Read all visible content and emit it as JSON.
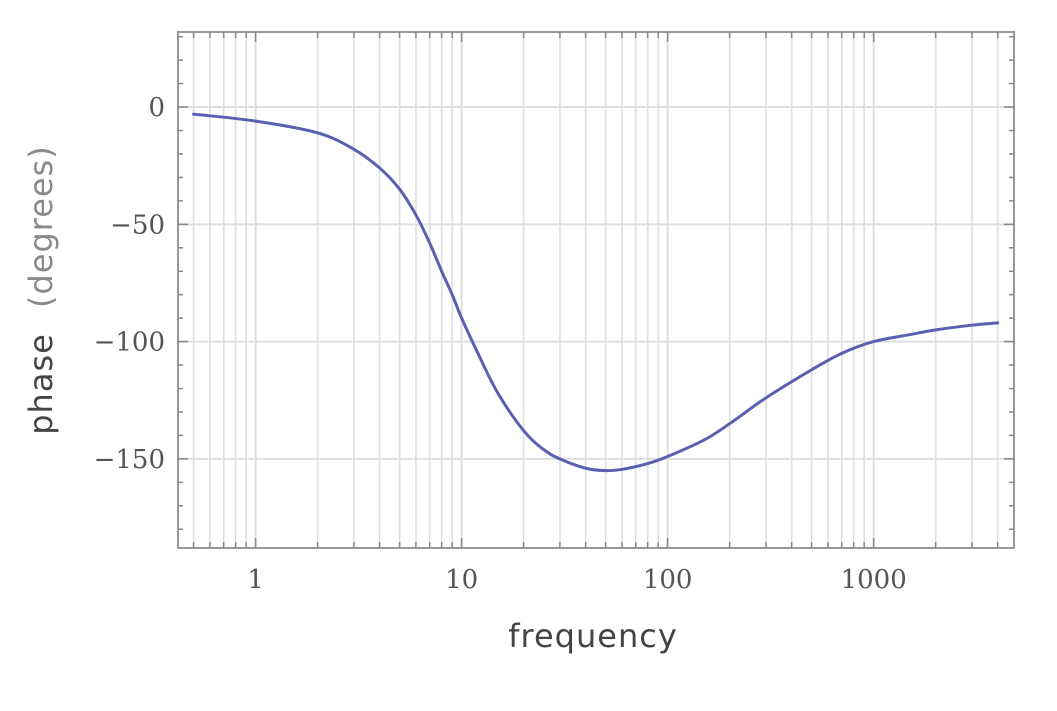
{
  "chart_data": {
    "type": "line",
    "title": "",
    "xlabel": "frequency",
    "ylabel": {
      "main": "phase",
      "unit": "(degrees)"
    },
    "x_scale": "log",
    "xlim": [
      0.42,
      4800
    ],
    "ylim": [
      -188,
      32
    ],
    "x_ticks": [
      {
        "value": 1,
        "label": "1"
      },
      {
        "value": 10,
        "label": "10"
      },
      {
        "value": 100,
        "label": "100"
      },
      {
        "value": 1000,
        "label": "1000"
      }
    ],
    "y_ticks": [
      {
        "value": 0,
        "label": "0"
      },
      {
        "value": -50,
        "label": "−50"
      },
      {
        "value": -100,
        "label": "−100"
      },
      {
        "value": -150,
        "label": "−150"
      }
    ],
    "grid": true,
    "series": [
      {
        "color": "#5a5fb0",
        "x": [
          0.5,
          1,
          2,
          3,
          4,
          5,
          6,
          7,
          8,
          9,
          10,
          12,
          15,
          20,
          25,
          30,
          40,
          50,
          60,
          80,
          100,
          150,
          200,
          300,
          500,
          700,
          1000,
          1500,
          2000,
          3000,
          4000
        ],
        "y": [
          -3,
          -6,
          -11,
          -18,
          -26,
          -35,
          -46,
          -58,
          -70,
          -80,
          -90,
          -105,
          -122,
          -138,
          -146,
          -150,
          -154,
          -155,
          -154.5,
          -152,
          -149,
          -142,
          -135,
          -124,
          -112,
          -105,
          -100,
          -97,
          -95,
          -93,
          -92
        ]
      }
    ]
  }
}
